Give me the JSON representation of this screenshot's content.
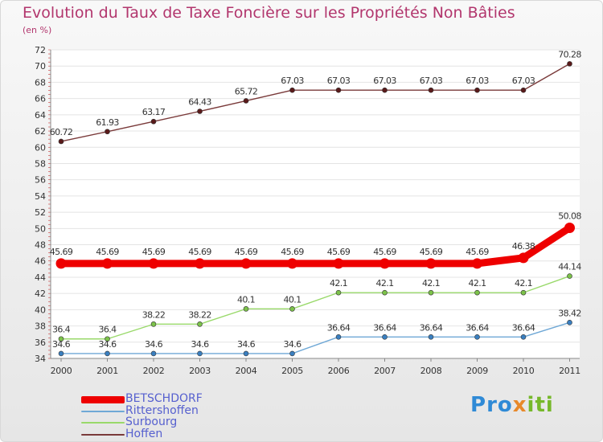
{
  "title": "Evolution du Taux de Taxe Foncière sur les Propriétés Non Bâties",
  "subtitle": "(en %)",
  "logo": {
    "letters": [
      "P",
      "r",
      "o",
      "x",
      "i",
      "t",
      "i"
    ],
    "colors": [
      "#2f8ad6",
      "#2f8ad6",
      "#2f8ad6",
      "#e8892a",
      "#76b82a",
      "#76b82a",
      "#76b82a"
    ]
  },
  "chart_data": {
    "type": "line",
    "title": "Evolution du Taux de Taxe Foncière sur les Propriétés Non Bâties",
    "ylabel": "(en %)",
    "xlabel": "",
    "ylim": [
      34,
      72
    ],
    "yticks": [
      "34",
      "36",
      "38",
      "40",
      "42",
      "44",
      "46",
      "48",
      "50",
      "52",
      "54",
      "56",
      "58",
      "60",
      "62",
      "64",
      "66",
      "68",
      "70",
      "72"
    ],
    "categories": [
      "2000",
      "2001",
      "2002",
      "2003",
      "2004",
      "2005",
      "2006",
      "2007",
      "2008",
      "2009",
      "2010",
      "2011"
    ],
    "series": [
      {
        "name": "Hoffen",
        "color": "#7a3a3a",
        "marker": "#5a1a1a",
        "values": [
          60.72,
          61.93,
          63.17,
          64.43,
          65.72,
          67.03,
          67.03,
          67.03,
          67.03,
          67.03,
          67.03,
          70.28
        ],
        "labels": [
          "60.72",
          "61.93",
          "63.17",
          "64.43",
          "65.72",
          "67.03",
          "67.03",
          "67.03",
          "67.03",
          "67.03",
          "67.03",
          "70.28"
        ]
      },
      {
        "name": "BETSCHDORF",
        "color": "#ee0000",
        "marker": "#ee0000",
        "values": [
          45.69,
          45.69,
          45.69,
          45.69,
          45.69,
          45.69,
          45.69,
          45.69,
          45.69,
          45.69,
          46.38,
          50.08
        ],
        "labels": [
          "45.69",
          "45.69",
          "45.69",
          "45.69",
          "45.69",
          "45.69",
          "45.69",
          "45.69",
          "45.69",
          "45.69",
          "46.38",
          "50.08"
        ]
      },
      {
        "name": "Surbourg",
        "color": "#99d96a",
        "marker": "#7cc24a",
        "values": [
          36.4,
          36.4,
          38.22,
          38.22,
          40.1,
          40.1,
          42.1,
          42.1,
          42.1,
          42.1,
          42.1,
          44.14
        ],
        "labels": [
          "36.4",
          "36.4",
          "38.22",
          "38.22",
          "40.1",
          "40.1",
          "42.1",
          "42.1",
          "42.1",
          "42.1",
          "42.1",
          "44.14"
        ]
      },
      {
        "name": "Rittershoffen",
        "color": "#6fa8d6",
        "marker": "#3a7fc0",
        "values": [
          34.6,
          34.6,
          34.6,
          34.6,
          34.6,
          34.6,
          36.64,
          36.64,
          36.64,
          36.64,
          36.64,
          38.42
        ],
        "labels": [
          "34.6",
          "34.6",
          "34.6",
          "34.6",
          "34.6",
          "34.6",
          "36.64",
          "36.64",
          "36.64",
          "36.64",
          "36.64",
          "38.42"
        ]
      }
    ],
    "legend": [
      {
        "name": "BETSCHDORF",
        "color": "#ee0000"
      },
      {
        "name": "Rittershoffen",
        "color": "#6fa8d6"
      },
      {
        "name": "Surbourg",
        "color": "#99d96a"
      },
      {
        "name": "Hoffen",
        "color": "#7a3a3a"
      }
    ]
  }
}
